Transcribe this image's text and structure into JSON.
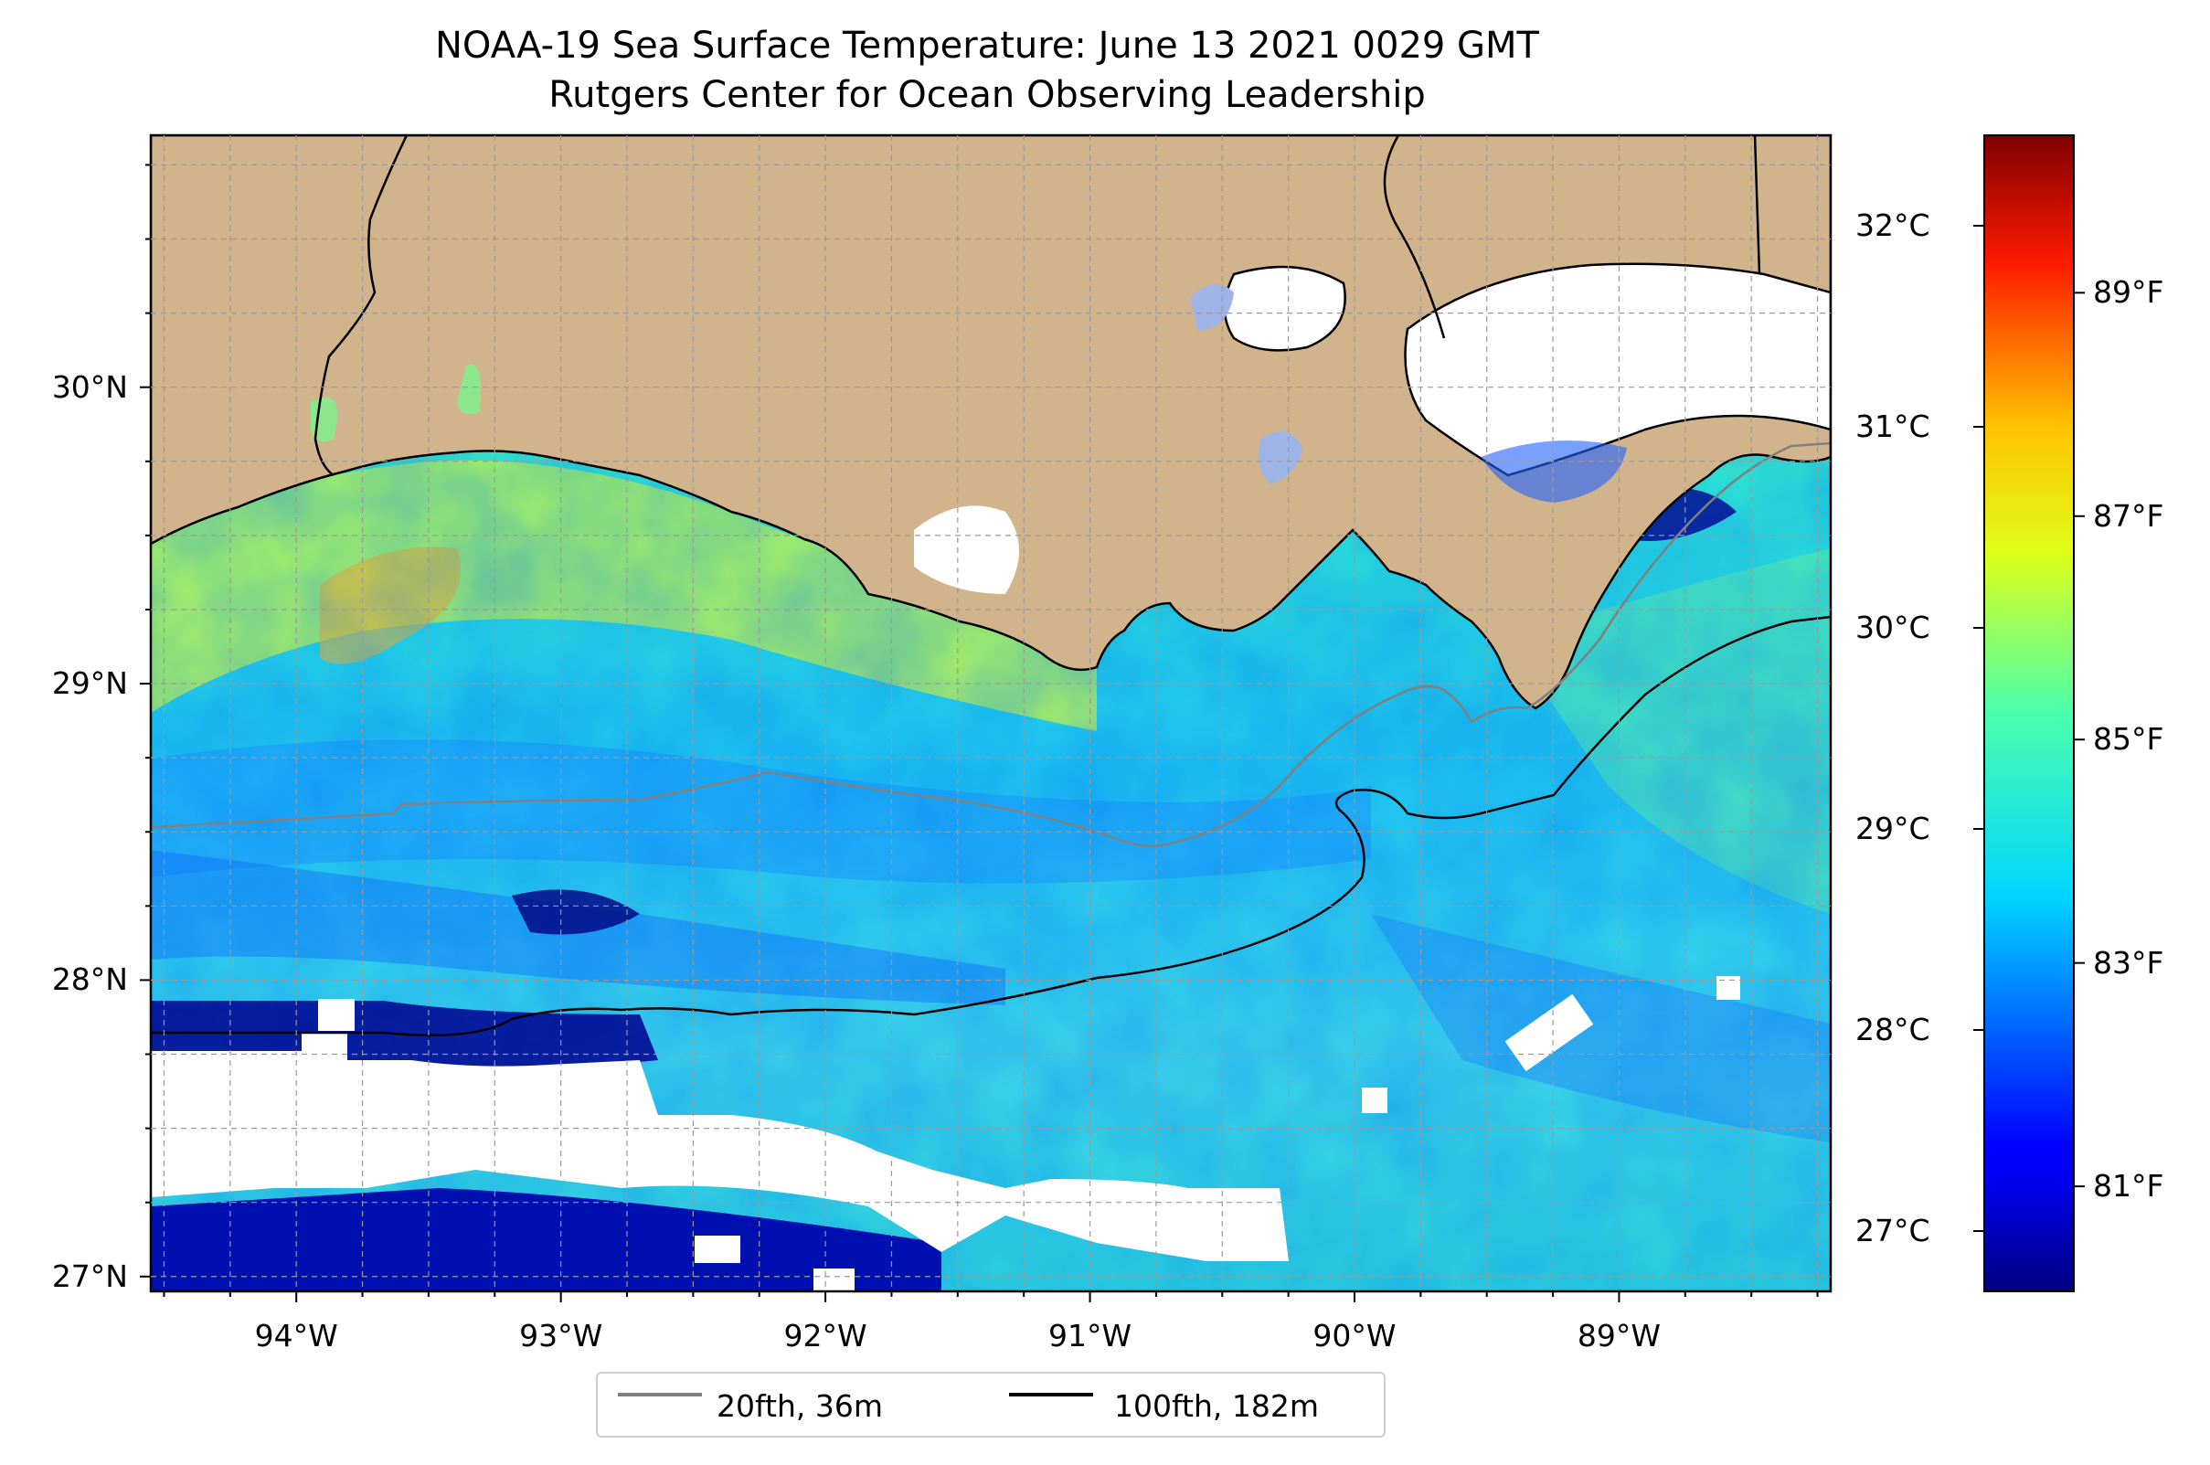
{
  "title": {
    "line1": "NOAA-19 Sea Surface Temperature: June 13 2021 0029 GMT",
    "line2": "Rutgers Center for Ocean Observing Leadership"
  },
  "colors": {
    "land": "#d2b48c",
    "no_data": "#ffffff",
    "contour_20fth": "#808080",
    "contour_100fth": "#000000",
    "colormap": "jet"
  },
  "map": {
    "lat_range": [
      26.95,
      30.85
    ],
    "lon_range": [
      -94.55,
      -88.2
    ],
    "lat_ticks": [
      {
        "value": 30,
        "label": "30°N"
      },
      {
        "value": 29,
        "label": "29°N"
      },
      {
        "value": 28,
        "label": "28°N"
      },
      {
        "value": 27,
        "label": "27°N"
      }
    ],
    "lon_ticks": [
      {
        "value": -94,
        "label": "94°W"
      },
      {
        "value": -93,
        "label": "93°W"
      },
      {
        "value": -92,
        "label": "92°W"
      },
      {
        "value": -91,
        "label": "91°W"
      },
      {
        "value": -90,
        "label": "90°W"
      },
      {
        "value": -89,
        "label": "89°W"
      }
    ],
    "grid": "dashed"
  },
  "colorbar": {
    "celsius_range": [
      26.7,
      32.45
    ],
    "celsius_ticks": [
      {
        "value": 27,
        "label": "27°C"
      },
      {
        "value": 28,
        "label": "28°C"
      },
      {
        "value": 29,
        "label": "29°C"
      },
      {
        "value": 30,
        "label": "30°C"
      },
      {
        "value": 31,
        "label": "31°C"
      },
      {
        "value": 32,
        "label": "32°C"
      }
    ],
    "fahrenheit_ticks": [
      {
        "value": 81,
        "label": "81°F"
      },
      {
        "value": 83,
        "label": "83°F"
      },
      {
        "value": 85,
        "label": "85°F"
      },
      {
        "value": 87,
        "label": "87°F"
      },
      {
        "value": 89,
        "label": "89°F"
      }
    ]
  },
  "legend": {
    "items": [
      {
        "label": "20fth, 36m",
        "color": "#808080"
      },
      {
        "label": "100fth, 182m",
        "color": "#000000"
      }
    ]
  }
}
